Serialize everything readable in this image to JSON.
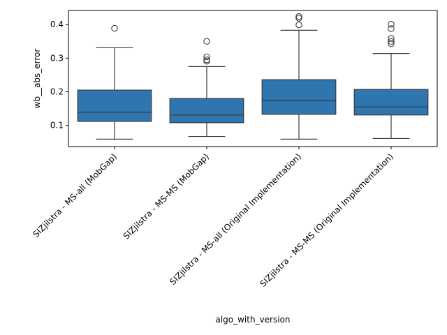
{
  "chart_data": {
    "type": "box",
    "xlabel": "algo_with_version",
    "ylabel": "wb__abs_error",
    "ylim": [
      0.037,
      0.442
    ],
    "yticks": [
      0.1,
      0.2,
      0.3,
      0.4
    ],
    "ytick_labels": [
      "0.1",
      "0.2",
      "0.3",
      "0.4"
    ],
    "grid": false,
    "box_color": "#2f75b0",
    "line_color": "#3a3a3a",
    "categories": [
      "SIZjilstra - MS-all (MobGap)",
      "SIZjilstra - MS-MS (MobGap)",
      "SIZjilstra - MS-all (Original Implementation)",
      "SIZjilstra - MS-MS (Original Implementation)"
    ],
    "boxes": [
      {
        "whisker_low": 0.059,
        "q1": 0.112,
        "median": 0.139,
        "q3": 0.205,
        "whisker_high": 0.331,
        "outliers": [
          0.389
        ]
      },
      {
        "whisker_low": 0.067,
        "q1": 0.108,
        "median": 0.131,
        "q3": 0.18,
        "whisker_high": 0.275,
        "outliers": [
          0.291,
          0.295,
          0.304,
          0.35
        ]
      },
      {
        "whisker_low": 0.059,
        "q1": 0.133,
        "median": 0.174,
        "q3": 0.236,
        "whisker_high": 0.383,
        "outliers": [
          0.399,
          0.419,
          0.424
        ]
      },
      {
        "whisker_low": 0.061,
        "q1": 0.131,
        "median": 0.155,
        "q3": 0.207,
        "whisker_high": 0.314,
        "outliers": [
          0.343,
          0.35,
          0.359,
          0.388,
          0.401
        ]
      }
    ]
  }
}
